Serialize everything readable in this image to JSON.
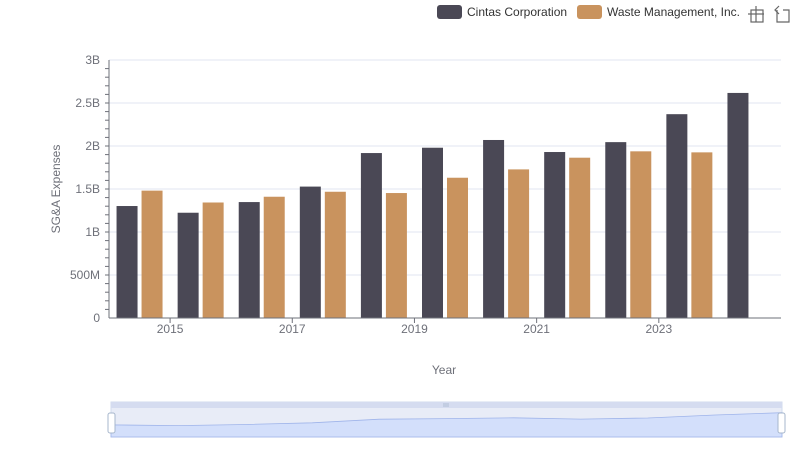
{
  "chart_data": {
    "type": "bar",
    "title": "",
    "xlabel": "Year",
    "ylabel": "SG&A Expenses",
    "categories": [
      "2014",
      "2015",
      "2016",
      "2017",
      "2018",
      "2019",
      "2020",
      "2021",
      "2022",
      "2023",
      "2024"
    ],
    "x_tick_labels": [
      "2015",
      "2017",
      "2019",
      "2021",
      "2023"
    ],
    "y_tick_labels": [
      "0",
      "500M",
      "1B",
      "1.5B",
      "2B",
      "2.5B",
      "3B"
    ],
    "ylim": [
      0,
      3000000000
    ],
    "grid": true,
    "legend_position": "top-right",
    "series": [
      {
        "name": "Cintas Corporation",
        "color": "#4a4855",
        "values": [
          1302000000,
          1224000000,
          1348000000,
          1528000000,
          1918000000,
          1980000000,
          2070000000,
          1930000000,
          2045000000,
          2370000000,
          2617000000
        ]
      },
      {
        "name": "Waste Management, Inc.",
        "color": "#c9935e",
        "values": [
          1481000000,
          1343000000,
          1410000000,
          1468000000,
          1453000000,
          1631000000,
          1728000000,
          1864000000,
          1938000000,
          1926000000,
          null
        ]
      }
    ]
  },
  "toolbar": {
    "zoom_icon": "zoom-select-icon",
    "restore_icon": "restore-icon"
  }
}
